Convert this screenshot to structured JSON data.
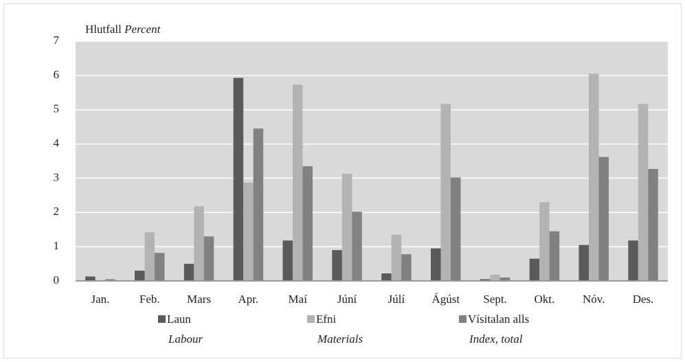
{
  "chart_data": {
    "type": "bar",
    "ylabel": "Hlutfall",
    "ylabel_en": "Percent",
    "categories": [
      "Jan.",
      "Feb.",
      "Mars",
      "Apr.",
      "Maí",
      "Júní",
      "Júlí",
      "Ágúst",
      "Sept.",
      "Okt.",
      "Nóv.",
      "Des."
    ],
    "series": [
      {
        "name": "Laun",
        "name_en": "Labour",
        "color": "#5a5a5a",
        "values": [
          0.13,
          0.3,
          0.5,
          5.93,
          1.18,
          0.9,
          0.22,
          0.95,
          0.05,
          0.65,
          1.05,
          1.18
        ]
      },
      {
        "name": "Efni",
        "name_en": "Materials",
        "color": "#b3b3b3",
        "values": [
          0.02,
          1.42,
          2.18,
          2.87,
          5.73,
          3.13,
          1.35,
          5.17,
          0.18,
          2.3,
          6.05,
          5.17
        ]
      },
      {
        "name": "Vísitalan alls",
        "name_en": "Index, total",
        "color": "#818181",
        "values": [
          0.05,
          0.82,
          1.3,
          4.45,
          3.35,
          2.02,
          0.78,
          3.02,
          0.1,
          1.45,
          3.62,
          3.27
        ]
      }
    ],
    "ylim": [
      0,
      7
    ],
    "yticks": [
      0,
      1,
      2,
      3,
      4,
      5,
      6,
      7
    ],
    "grid": true
  }
}
